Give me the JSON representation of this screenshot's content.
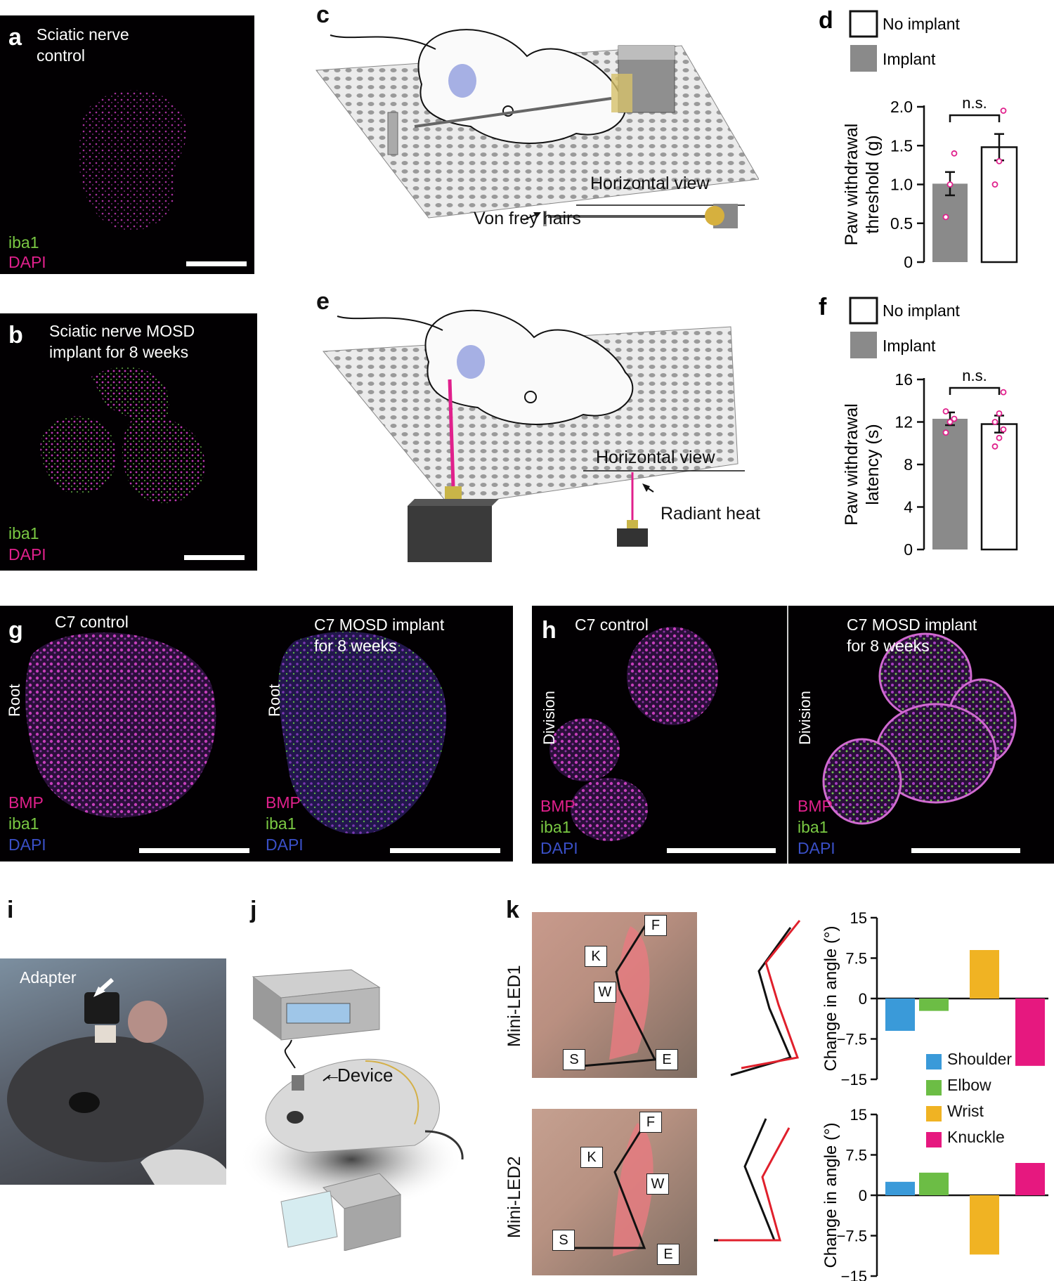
{
  "panels": {
    "a": {
      "letter": "a",
      "title_l1": "Sciatic nerve",
      "title_l2": "control",
      "legend": [
        "iba1",
        "DAPI"
      ]
    },
    "b": {
      "letter": "b",
      "title_l1": "Sciatic nerve MOSD",
      "title_l2": "implant for 8 weeks",
      "legend": [
        "iba1",
        "DAPI"
      ]
    },
    "c": {
      "letter": "c",
      "view_label": "Horizontal view",
      "pointer_label": "Von frey hairs"
    },
    "e": {
      "letter": "e",
      "view_label": "Horizontal view",
      "pointer_label": "Radiant heat"
    },
    "g": {
      "letter": "g",
      "left_title": "C7 control",
      "right_title_l1": "C7 MOSD implant",
      "right_title_l2": "for 8 weeks",
      "side_label": "Root",
      "legend": [
        "BMP",
        "iba1",
        "DAPI"
      ]
    },
    "h": {
      "letter": "h",
      "left_title": "C7 control",
      "right_title_l1": "C7 MOSD implant",
      "right_title_l2": "for 8 weeks",
      "side_label": "Division",
      "legend": [
        "BMP",
        "iba1",
        "DAPI"
      ]
    },
    "i": {
      "letter": "i",
      "adapter_label": "Adapter"
    },
    "j": {
      "letter": "j",
      "device_label": "Device"
    },
    "k": {
      "letter": "k",
      "row1_label": "Mini-LED1",
      "row2_label": "Mini-LED2",
      "joint_labels": [
        "F",
        "K",
        "W",
        "S",
        "E"
      ]
    }
  },
  "colors": {
    "implant_bar": "#8a8a8a",
    "no_implant_bar": "#ffffff",
    "points": "#e0208c",
    "shoulder": "#3a9ad9",
    "elbow": "#6cbd45",
    "wrist": "#f0b323",
    "knuckle": "#e6187f",
    "iba1": "#7ac943",
    "dapi": "#3a4fc7",
    "bmp": "#e0208c"
  },
  "chart_data": [
    {
      "id": "d",
      "letter": "d",
      "type": "bar",
      "categories": [
        "Implant",
        "No implant"
      ],
      "values": [
        1.01,
        1.48
      ],
      "errors": [
        0.15,
        0.17
      ],
      "points": [
        [
          0.58,
          1.0,
          1.4
        ],
        [
          1.0,
          1.3,
          1.95
        ]
      ],
      "legend": [
        "No implant",
        "Implant"
      ],
      "ylabel_l1": "Paw withdrawal",
      "ylabel_l2": "threshold (g)",
      "ylim": [
        0,
        2.0
      ],
      "yticks": [
        "0",
        "0.5",
        "1.0",
        "1.5",
        "2.0"
      ],
      "ytick_values": [
        0,
        0.5,
        1.0,
        1.5,
        2.0
      ],
      "annotation": "n.s."
    },
    {
      "id": "f",
      "letter": "f",
      "type": "bar",
      "categories": [
        "Implant",
        "No implant"
      ],
      "values": [
        12.3,
        11.8
      ],
      "errors": [
        0.6,
        0.8
      ],
      "points": [
        [
          11.0,
          12.0,
          12.3,
          13.0
        ],
        [
          9.7,
          10.5,
          11.3,
          12.0,
          12.8,
          14.8
        ]
      ],
      "legend": [
        "No implant",
        "Implant"
      ],
      "ylabel_l1": "Paw withdrawal",
      "ylabel_l2": "latency (s)",
      "ylim": [
        0,
        16
      ],
      "yticks": [
        "0",
        "4",
        "8",
        "12",
        "16"
      ],
      "ytick_values": [
        0,
        4,
        8,
        12,
        16
      ],
      "annotation": "n.s."
    },
    {
      "id": "k1",
      "type": "bar",
      "categories": [
        "Shoulder",
        "Elbow",
        "Wrist",
        "Knuckle"
      ],
      "values": [
        -6,
        -2.3,
        9,
        -12.5
      ],
      "ylabel": "Change in angle (°)",
      "ylim": [
        -15,
        15
      ],
      "yticks": [
        "15",
        "7.5",
        "0",
        "−7.5",
        "−15"
      ],
      "ytick_values": [
        15,
        7.5,
        0,
        -7.5,
        -15
      ]
    },
    {
      "id": "k2",
      "type": "bar",
      "categories": [
        "Shoulder",
        "Elbow",
        "Wrist",
        "Knuckle"
      ],
      "values": [
        2.5,
        4.2,
        -11,
        6
      ],
      "ylabel": "Change in angle (°)",
      "ylim": [
        -15,
        15
      ],
      "yticks": [
        "15",
        "7.5",
        "0",
        "−7.5",
        "−15"
      ],
      "ytick_values": [
        15,
        7.5,
        0,
        -7.5,
        -15
      ],
      "legend": [
        "Shoulder",
        "Elbow",
        "Wrist",
        "Knuckle"
      ]
    }
  ]
}
